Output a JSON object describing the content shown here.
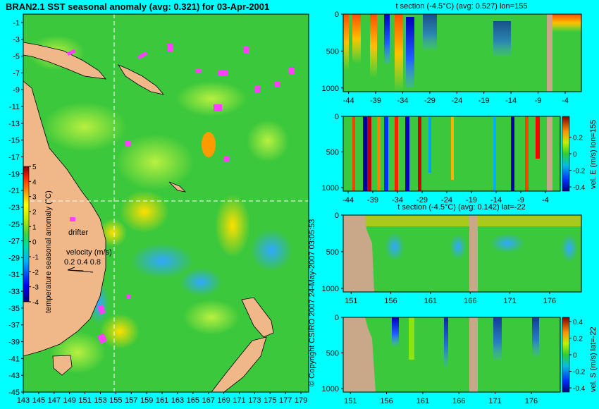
{
  "main_map": {
    "title": "BRAN2.1 SST seasonal anomaly (avg: 0.321) for 03-Apr-2001",
    "lat_ticks": [
      -1,
      -3,
      -5,
      -7,
      -9,
      -11,
      -13,
      -15,
      -17,
      -19,
      -21,
      -23,
      -25,
      -27,
      -29,
      -31,
      -33,
      -35,
      -37,
      -39,
      -41,
      -43,
      -45
    ],
    "lon_ticks": [
      143,
      145,
      147,
      149,
      151,
      153,
      155,
      157,
      159,
      161,
      163,
      165,
      167,
      169,
      171,
      173,
      175,
      177,
      179
    ],
    "crosshair": {
      "lon": 155,
      "lat": -22
    },
    "colorbar_label": "temperature seasonal anomaly (°C)",
    "colorbar_ticks": [
      5,
      4,
      3,
      2,
      1,
      0,
      -1,
      -2,
      -3,
      -4
    ],
    "drifter_label": "drifter",
    "velocity_label": "velocity (m/s)",
    "velocity_values": "0.2 0.4 0.8"
  },
  "copyright": "© Copyright CSIRO 2007  24-May-2007 03:05:53",
  "panels": [
    {
      "id": "t-lon",
      "title": "t section (-4.5°C) (avg: 0.527) lon=155",
      "y_ticks": [
        "0",
        "500",
        "1000"
      ],
      "x_ticks": [
        "-44",
        "-39",
        "-34",
        "-29",
        "-24",
        "-19",
        "-14",
        "-9",
        "-4"
      ]
    },
    {
      "id": "v-lon",
      "title": "",
      "y_ticks": [
        "0",
        "500",
        "1000"
      ],
      "x_ticks": [
        "-44",
        "-39",
        "-34",
        "-29",
        "-24",
        "-19",
        "-14",
        "-9",
        "-4"
      ],
      "colorbar_label": "vel. E (m/s) lon=155",
      "colorbar_ticks": [
        "0.2",
        "0",
        "-0.2",
        "-0.4"
      ]
    },
    {
      "id": "t-lat",
      "title": "t section (-4.5°C) (avg: 0.142) lat=-22",
      "y_ticks": [
        "0",
        "500",
        "1000"
      ],
      "x_ticks": [
        "151",
        "156",
        "161",
        "166",
        "171",
        "176"
      ]
    },
    {
      "id": "v-lat",
      "title": "",
      "y_ticks": [
        "0",
        "500",
        "1000"
      ],
      "x_ticks": [
        "151",
        "156",
        "161",
        "166",
        "171",
        "176"
      ],
      "colorbar_label": "vel. S (m/s) lat=-22",
      "colorbar_ticks": [
        "0.4",
        "0.2",
        "0",
        "-0.2",
        "-0.4"
      ]
    }
  ],
  "chart_data": [
    {
      "type": "heatmap",
      "title": "BRAN2.1 SST seasonal anomaly (avg: 0.321) for 03-Apr-2001",
      "xlabel": "",
      "ylabel": "",
      "xlim": [
        143,
        180
      ],
      "ylim": [
        -45,
        0
      ],
      "colorbar": {
        "label": "temperature seasonal anomaly (°C)",
        "range": [
          -4,
          5
        ]
      },
      "average": 0.321
    },
    {
      "type": "heatmap",
      "title": "t section (-4.5°C) (avg: 0.527) lon=155",
      "xlim": [
        -45,
        -1
      ],
      "ylim": [
        1000,
        0
      ],
      "average": 0.527
    },
    {
      "type": "heatmap",
      "title": "",
      "xlim": [
        -45,
        -1
      ],
      "ylim": [
        1000,
        0
      ],
      "colorbar": {
        "label": "vel. E (m/s) lon=155",
        "range": [
          -0.4,
          0.4
        ]
      }
    },
    {
      "type": "heatmap",
      "title": "t section (-4.5°C) (avg: 0.142) lat=-22",
      "xlim": [
        150,
        180
      ],
      "ylim": [
        1000,
        0
      ],
      "average": 0.142
    },
    {
      "type": "heatmap",
      "title": "",
      "xlim": [
        150,
        180
      ],
      "ylim": [
        1000,
        0
      ],
      "colorbar": {
        "label": "vel. S (m/s) lat=-22",
        "range": [
          -0.4,
          0.4
        ]
      }
    }
  ]
}
